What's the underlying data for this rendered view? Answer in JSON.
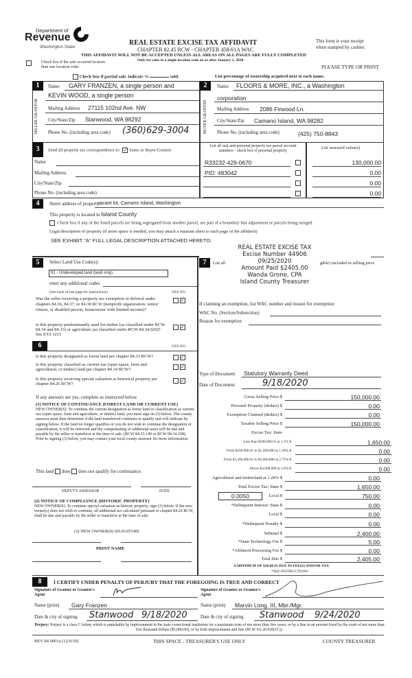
{
  "header": {
    "logo_dept": "Department of",
    "logo_revenue": "Revenue",
    "logo_state": "Washington State",
    "title": "REAL ESTATE EXCISE TAX AFFIDAVIT",
    "chapter": "CHAPTER 82.45 RCW - CHAPTER 458-61A WAC",
    "warning": "THIS AFFIDAVIT WILL NOT BE ACCEPTED UNLESS ALL AREAS ON ALL PAGES ARE FULLY COMPLETED",
    "only_for": "Only for sales in a single location code on or after January 1, 2020.",
    "receipt_1": "This form is your receipt",
    "receipt_2": "when stamped by cashier.",
    "multi_location": "Check box if the sale occurred in more than one location code.",
    "please": "PLEASE TYPE OR PRINT",
    "partial": "Check box if partial sale, indicate %",
    "sold": "sold.",
    "list_pct": "List percentage of ownership acquired next to each name."
  },
  "seller": {
    "num": "1",
    "side": "SELLER GRANTOR",
    "name_label": "Name",
    "name_1": "GARY FRANZEN, a single person and",
    "name_2": "KEVIN WOOD, a single person",
    "addr_label": "Mailing Address",
    "addr": "27115 102nd Ave. NW",
    "city_label": "City/State/Zip",
    "city": "Stanwood, WA 98292",
    "phone_label": "Phone No. (including area code)",
    "phone": "(360)629-3004"
  },
  "buyer": {
    "num": "2",
    "side": "BUYER GRANTEE",
    "name_label": "Name",
    "name_1": "FLOORS & MORE, INC., a Washington",
    "name_2": "corporation",
    "addr_label": "Mailing Address",
    "addr": "2086 Firwood Ln.",
    "city_label": "City/State/Zip",
    "city": "Camano Island, WA 98282",
    "phone_label": "Phone No. (including area code)",
    "phone": "(425) 750-8843"
  },
  "sec3": {
    "num": "3",
    "send": "Send all property tax correspondence to:",
    "same": "Same as Buyer/Grantee",
    "same_checked": true,
    "name": "Name",
    "addr": "Mailing Address",
    "city": "City/State/Zip",
    "phone": "Phone No. (including area code)",
    "parcel_hdr": "List all real and personal property tax parcel account numbers - check box if personal property",
    "value_hdr": "List assessed value(s)",
    "parcels": [
      "R33232-429-0670",
      "PID: 483042",
      "",
      ""
    ],
    "values": [
      "130,000.00",
      "0.00",
      "0.00",
      "0.00"
    ]
  },
  "sec4": {
    "num": "4",
    "street_label": "Street address of property:",
    "street": "vacant lot, Camano Island, Washington",
    "located_label": "This property is located in",
    "county": "Island County",
    "segregate": "Check box if any of the listed parcels are being segregated from another parcel, are part of a boundary line adjustment or parcels being merged.",
    "legal_label": "Legal description of property (if more space is needed, you may attach a separate sheet to each page of the affidavit)",
    "legal": "SEE EXHIBIT \"A\" FULL LEGAL DESCRIPTION ATTACHED HERETO."
  },
  "stamp": {
    "l1": "REAL ESTATE EXCISE TAX",
    "l2": "Excise Number 44906",
    "l3": "09/25/2020",
    "l4": "Amount Paid $2405.00",
    "l5": "Wanda Grone, CPA",
    "l6": "Island County Treasurer"
  },
  "sec5": {
    "num": "5",
    "label": "Select Land Use Code(s):",
    "code": "91 - Undeveloped land (land only)",
    "additional": "enter any additional codes",
    "see_back": "(See back of last page for instructions)",
    "yes": "YES",
    "no": "NO",
    "q1": "Was the seller receiving a property tax exemption or deferral under chapters 84.36, 84.37, or 84.38 RCW (nonprofit organization, senior citizen, or disabled person, homeowner with limited income)?",
    "q2": "Is this property predominantly used for timber (as classified under RCW 84.34 and 84.33) or agriculture (as classified under RCW 84.34.020)? See ETA 3215"
  },
  "sec6": {
    "num": "6",
    "yes": "YES",
    "no": "NO",
    "q1": "Is this property designated as forest land per chapter 84.33 RCW?",
    "q2": "Is this property classified as current use (open space, farm and agricultural, or timber) land per chapter 84.34 RCW?",
    "q3": "Is this property receiving special valuation as historical property per chapter 84.26 RCW?",
    "if_yes": "If any answers are yes, complete as instructed below.",
    "n1_title": "(1) NOTICE OF CONTINUANCE (FOREST LAND OR CURRENT USE)",
    "n1_body": "NEW OWNER(S): To continue the current designation as forest land or classification as current use (open space, farm and agriculture, or timber) land, you must sign on (3) below. The county assessor must then determine if the land transferred continues to qualify and will indicate by signing below. If the land no longer qualifies or you do not wish to continue the designation or classification, it will be removed and the compensating or additional taxes will be due and payable by the seller or transferor at the time of sale. (RCW 84.33.140 or RCW 84.34.108). Prior to signing (3) below, you may contact your local county assessor for more information.",
    "this_land": "This land",
    "does": "does",
    "does_not": "does not qualify for continuance.",
    "deputy": "DEPUTY ASSESSOR",
    "date": "DATE",
    "n2_title": "(2) NOTICE OF COMPLIANCE (HISTORIC PROPERTY)",
    "n2_body": "NEW OWNER(S): To continue special valuation as historic property, sign (3) below. If the new owner(s) does not wish to continue, all additional tax calculated pursuant to chapter 84.26 RCW, shall be due and payable by the seller or transferor at the time of sale.",
    "n3_title": "(3) NEW OWNER(S) SIGNATURE",
    "print_name": "PRINT NAME"
  },
  "sec7": {
    "num": "7",
    "list_all_a": "List all",
    "list_all_b": "gible) included in selling price",
    "exempt_intro": "If claiming an exemption, list WAC number and reason for exemption:",
    "wac_label": "WAC No. (Section/Subsection)",
    "reason_label": "Reason for exemption",
    "doc_type_label": "Type of Document",
    "doc_type": "Statutory Warranty Deed",
    "doc_date_label": "Date of Document",
    "doc_date": "9/18/2020"
  },
  "tax": {
    "rows": [
      {
        "label": "Gross Selling Price $",
        "value": "150,000.00"
      },
      {
        "label": "Personal Property (deduct) $",
        "value": "0.00"
      },
      {
        "label": "Exemption Claimed (deduct) $",
        "value": "0.00"
      },
      {
        "label": "Taxable Selling Price $",
        "value": "150,000.00"
      },
      {
        "label": "Excise Tax: State",
        "value": ""
      },
      {
        "label": "Less than $500,000.01 at 1.1% $",
        "value": "1,650.00"
      },
      {
        "label": "From $500,000.01 to $1,500,000 at 1.28% $",
        "value": "0.00"
      },
      {
        "label": "From $1,500,000.01 to $3,000,000 at 2.75% $",
        "value": "0.00"
      },
      {
        "label": "Above $3,000,000 at 3.0% $",
        "value": "0.00"
      },
      {
        "label": "Agricultural and timberland at 1.28% $",
        "value": "0.00"
      },
      {
        "label": "Total Excise Tax: State $",
        "value": "1,650.00"
      },
      {
        "label": "Local $",
        "value": "750.00"
      },
      {
        "label": "*Delinquent Interest: State $",
        "value": "0.00"
      },
      {
        "label": "Local $",
        "value": "0.00"
      },
      {
        "label": "*Delinquent Penalty $",
        "value": "0.00"
      },
      {
        "label": "Subtotal $",
        "value": "2,400.00"
      },
      {
        "label": "*State Technology Fee $",
        "value": "5.00"
      },
      {
        "label": "*Affidavit Processing Fee $",
        "value": "0.00"
      },
      {
        "label": "Total Due $",
        "value": "2,405.00"
      }
    ],
    "local_rate": "0.0050",
    "minimum": "A MINIMUM OF $10.00 IS DUE IN FEE(S) AND/OR TAX",
    "see_instr": "*SEE INSTRUCTIONS"
  },
  "sec8": {
    "num": "8",
    "certify": "I CERTIFY UNDER PENALTY OF PERJURY THAT THE FOREGOING IS TRUE AND CORRECT",
    "grantor_sig": "Signature of Grantor or Grantor's Agent",
    "grantee_sig": "Signature of Grantee or Grantee's Agent",
    "name_label": "Name (print)",
    "grantor_name": "Gary Franzen",
    "grantee_name": "Marvin Long, III, Mbr./Mgr.",
    "date_label": "Date & city of signing",
    "grantor_city": "Stanwood",
    "grantor_date": "9/18/2020",
    "grantee_city": "Stanwood",
    "grantee_date": "9/24/2020",
    "perjury_b": "Perjury:",
    "perjury": "Perjury is a class C felony which is punishable by imprisonment in the state correctional institution for a maximum term of not more than five years, or by a fine in an amount fixed by the court of not more than five thousand dollars ($5,000.00), or by both imprisonment and fine (RCW 9A.20.020(1C))."
  },
  "footer": {
    "rev": "REV 84 0001a (12/6/19)",
    "treasurer_use": "THIS SPACE - TREASURER'S USE ONLY",
    "county": "COUNTY TREASURER"
  }
}
